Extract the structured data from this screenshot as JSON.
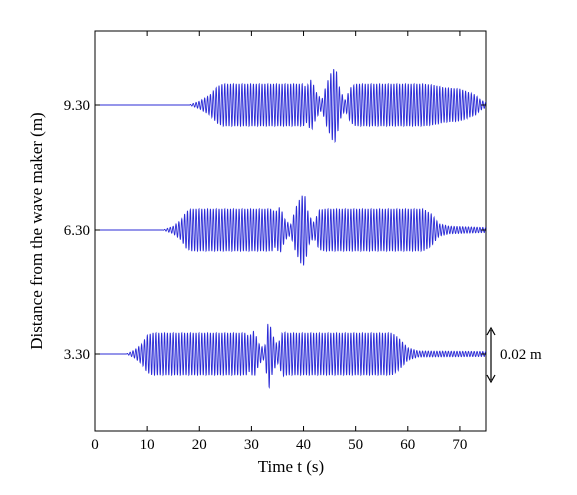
{
  "chart_data": {
    "type": "line",
    "title": "",
    "xlabel": "Time t (s)",
    "ylabel": "Distance from the wave maker (m)",
    "xlim": [
      0,
      75
    ],
    "x_ticks": [
      0,
      10,
      20,
      30,
      40,
      50,
      60,
      70
    ],
    "y_ticks": [
      "3.30",
      "6.30",
      "9.30"
    ],
    "grid": false,
    "scale_bar": {
      "label": "0.02 m",
      "value_m": 0.02
    },
    "series": [
      {
        "offset_label": "9.30",
        "envelope": [
          [
            0,
            0
          ],
          [
            18,
            0
          ],
          [
            20,
            0.0015
          ],
          [
            22,
            0.004
          ],
          [
            23.5,
            0.0075
          ],
          [
            24.5,
            0.0085
          ],
          [
            40,
            0.0085
          ],
          [
            40.5,
            0.007
          ],
          [
            41.5,
            0.0105
          ],
          [
            42.5,
            0.005
          ],
          [
            43.5,
            0.002
          ],
          [
            44.5,
            0.009
          ],
          [
            45.5,
            0.014
          ],
          [
            46.2,
            0.015
          ],
          [
            47,
            0.006
          ],
          [
            48,
            0.002
          ],
          [
            49,
            0.007
          ],
          [
            50,
            0.0085
          ],
          [
            63,
            0.0085
          ],
          [
            65,
            0.008
          ],
          [
            67,
            0.007
          ],
          [
            70,
            0.0065
          ],
          [
            73,
            0.004
          ],
          [
            74,
            0.002
          ],
          [
            75,
            0.001
          ]
        ]
      },
      {
        "offset_label": "6.30",
        "envelope": [
          [
            0,
            0
          ],
          [
            13,
            0
          ],
          [
            15,
            0.0015
          ],
          [
            16.5,
            0.004
          ],
          [
            17.5,
            0.0075
          ],
          [
            18.5,
            0.0085
          ],
          [
            34,
            0.0085
          ],
          [
            34.5,
            0.007
          ],
          [
            35.5,
            0.0095
          ],
          [
            36.5,
            0.004
          ],
          [
            37.5,
            0.002
          ],
          [
            38.5,
            0.009
          ],
          [
            39.5,
            0.0135
          ],
          [
            40.2,
            0.0145
          ],
          [
            41,
            0.006
          ],
          [
            42,
            0.003
          ],
          [
            43,
            0.008
          ],
          [
            44,
            0.0085
          ],
          [
            63,
            0.0085
          ],
          [
            64.5,
            0.0065
          ],
          [
            66,
            0.0025
          ],
          [
            68,
            0.0015
          ],
          [
            75,
            0.001
          ]
        ]
      },
      {
        "offset_label": "3.30",
        "envelope": [
          [
            0,
            0
          ],
          [
            6,
            0
          ],
          [
            7.5,
            0.0015
          ],
          [
            9,
            0.004
          ],
          [
            10,
            0.0075
          ],
          [
            11,
            0.0085
          ],
          [
            29,
            0.0085
          ],
          [
            29.5,
            0.007
          ],
          [
            30.5,
            0.0095
          ],
          [
            31.5,
            0.004
          ],
          [
            32.5,
            0.002
          ],
          [
            33.3,
            0.0145
          ],
          [
            34,
            0.008
          ],
          [
            35,
            0.0035
          ],
          [
            36,
            0.009
          ],
          [
            37,
            0.0085
          ],
          [
            57,
            0.0085
          ],
          [
            58.5,
            0.006
          ],
          [
            60,
            0.0025
          ],
          [
            62,
            0.0012
          ],
          [
            75,
            0.001
          ]
        ]
      }
    ]
  }
}
